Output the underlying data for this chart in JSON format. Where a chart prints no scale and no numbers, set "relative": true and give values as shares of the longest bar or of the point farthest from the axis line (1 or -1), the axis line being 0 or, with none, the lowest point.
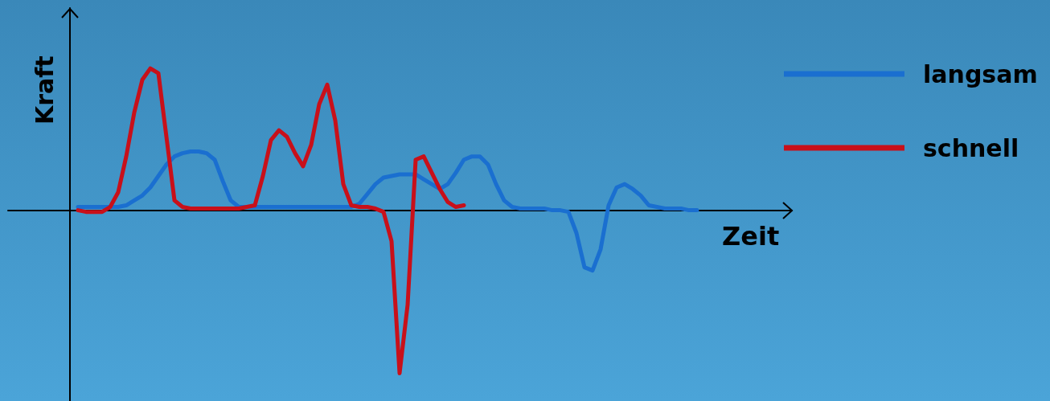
{
  "chart_data": {
    "type": "line",
    "relative": true,
    "xlabel": "Zeit",
    "ylabel": "Kraft",
    "legend": "top right",
    "marker": "none",
    "line_style": "solid",
    "grid": false,
    "categories": [
      null,
      null,
      null,
      null,
      null,
      null,
      null,
      null,
      null,
      null,
      null,
      null,
      null,
      null,
      null,
      null,
      null,
      null,
      null,
      null,
      null,
      null,
      null,
      null,
      null,
      null,
      null,
      null,
      null,
      null,
      null,
      null,
      null,
      null,
      null,
      null,
      null,
      null,
      null,
      null,
      null,
      null,
      null,
      null,
      null,
      null,
      null,
      null,
      null,
      null,
      null,
      null,
      null,
      null,
      null,
      null,
      null,
      null,
      null,
      null,
      null,
      null,
      null,
      null,
      null,
      null,
      null,
      null,
      null,
      null,
      null,
      null,
      null,
      null,
      null,
      null,
      null,
      null
    ],
    "series": [
      {
        "name": "langsam",
        "color": "#1a6fd0",
        "values": [
          0.02,
          0.02,
          0.02,
          0.02,
          0.02,
          0.02,
          0.03,
          0.06,
          0.09,
          0.14,
          0.21,
          0.28,
          0.33,
          0.35,
          0.36,
          0.36,
          0.35,
          0.31,
          0.18,
          0.06,
          0.02,
          0.02,
          0.02,
          0.02,
          0.02,
          0.02,
          0.02,
          0.02,
          0.02,
          0.02,
          0.02,
          0.02,
          0.02,
          0.02,
          0.02,
          0.04,
          0.1,
          0.16,
          0.2,
          0.21,
          0.22,
          0.22,
          0.22,
          0.19,
          0.16,
          0.13,
          0.16,
          0.23,
          0.31,
          0.33,
          0.33,
          0.28,
          0.16,
          0.06,
          0.02,
          0.01,
          0.01,
          0.01,
          0.01,
          0,
          0,
          -0.01,
          -0.14,
          -0.35,
          -0.37,
          -0.24,
          0.03,
          0.14,
          0.16,
          0.13,
          0.09,
          0.03,
          0.02,
          0.01,
          0.01,
          0.01,
          0,
          0
        ]
      },
      {
        "name": "schnell",
        "color": "#c8101a",
        "values": [
          0,
          -0.01,
          -0.01,
          -0.01,
          0.02,
          0.11,
          0.33,
          0.6,
          0.8,
          0.87,
          0.84,
          0.45,
          0.06,
          0.02,
          0.01,
          0.01,
          0.01,
          0.01,
          0.01,
          0.01,
          0.01,
          0.02,
          0.03,
          0.21,
          0.43,
          0.49,
          0.45,
          0.35,
          0.27,
          0.4,
          0.65,
          0.77,
          0.55,
          0.16,
          0.03,
          0.02,
          0.02,
          0.01,
          -0.01,
          -0.19,
          -1,
          -0.58,
          0.31,
          0.33,
          0.23,
          0.13,
          0.05,
          0.02,
          0.03,
          null,
          null,
          null,
          null,
          null,
          null,
          null,
          null,
          null,
          null,
          null,
          null,
          null,
          null,
          null,
          null,
          null,
          null,
          null,
          null,
          null,
          null,
          null,
          null,
          null,
          null,
          null,
          null,
          null
        ]
      }
    ]
  }
}
